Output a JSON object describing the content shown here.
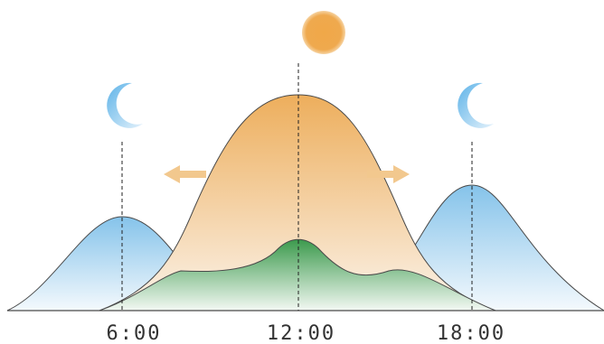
{
  "time_labels": {
    "morning": "6:00",
    "noon": "12:00",
    "evening": "18:00"
  },
  "icons": {
    "sun": "sun-icon",
    "moon_left": "crescent-moon-icon",
    "moon_right": "crescent-moon-icon",
    "arrow_left": "arrow-left-icon",
    "arrow_right": "arrow-right-icon"
  },
  "colors": {
    "sun": "#f0a84a",
    "orange_curve": "#f0b567",
    "blue_curve": "#8fc8ea",
    "green_curve": "#3f9e50",
    "arrow": "#f2c88e",
    "moon": "#7cc0ea"
  }
}
